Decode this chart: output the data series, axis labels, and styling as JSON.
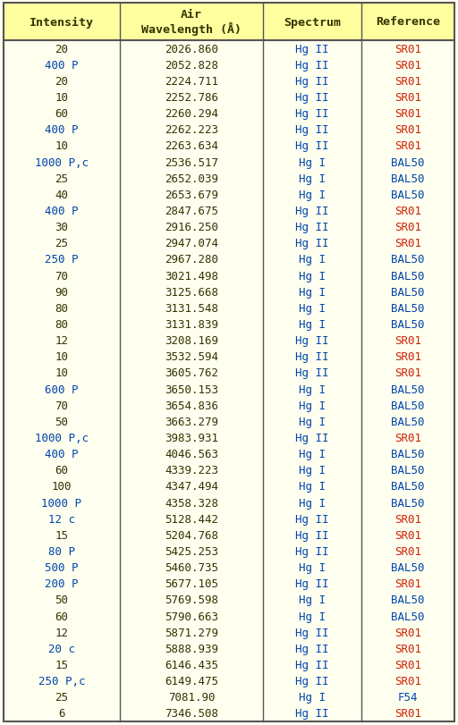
{
  "title_bg": "#ffffa0",
  "row_bg": "#fffff0",
  "border_color": "#555555",
  "header_text_color": "#333300",
  "intensity_color_default": "#333300",
  "intensity_color_highlight": "#0044aa",
  "spectrum_color": "#0044aa",
  "reference_color_sr01": "#cc2200",
  "reference_color_bal50": "#0044aa",
  "reference_color_f54": "#0044aa",
  "rows": [
    {
      "intensity": "20",
      "wavelength": "2026.860",
      "spectrum": "Hg II",
      "reference": "SR01",
      "int_hi": false
    },
    {
      "intensity": "400 P",
      "wavelength": "2052.828",
      "spectrum": "Hg II",
      "reference": "SR01",
      "int_hi": true
    },
    {
      "intensity": "20",
      "wavelength": "2224.711",
      "spectrum": "Hg II",
      "reference": "SR01",
      "int_hi": false
    },
    {
      "intensity": "10",
      "wavelength": "2252.786",
      "spectrum": "Hg II",
      "reference": "SR01",
      "int_hi": false
    },
    {
      "intensity": "60",
      "wavelength": "2260.294",
      "spectrum": "Hg II",
      "reference": "SR01",
      "int_hi": false
    },
    {
      "intensity": "400 P",
      "wavelength": "2262.223",
      "spectrum": "Hg II",
      "reference": "SR01",
      "int_hi": true
    },
    {
      "intensity": "10",
      "wavelength": "2263.634",
      "spectrum": "Hg II",
      "reference": "SR01",
      "int_hi": false
    },
    {
      "intensity": "1000 P,c",
      "wavelength": "2536.517",
      "spectrum": "Hg I",
      "reference": "BAL50",
      "int_hi": true
    },
    {
      "intensity": "25",
      "wavelength": "2652.039",
      "spectrum": "Hg I",
      "reference": "BAL50",
      "int_hi": false
    },
    {
      "intensity": "40",
      "wavelength": "2653.679",
      "spectrum": "Hg I",
      "reference": "BAL50",
      "int_hi": false
    },
    {
      "intensity": "400 P",
      "wavelength": "2847.675",
      "spectrum": "Hg II",
      "reference": "SR01",
      "int_hi": true
    },
    {
      "intensity": "30",
      "wavelength": "2916.250",
      "spectrum": "Hg II",
      "reference": "SR01",
      "int_hi": false
    },
    {
      "intensity": "25",
      "wavelength": "2947.074",
      "spectrum": "Hg II",
      "reference": "SR01",
      "int_hi": false
    },
    {
      "intensity": "250 P",
      "wavelength": "2967.280",
      "spectrum": "Hg I",
      "reference": "BAL50",
      "int_hi": true
    },
    {
      "intensity": "70",
      "wavelength": "3021.498",
      "spectrum": "Hg I",
      "reference": "BAL50",
      "int_hi": false
    },
    {
      "intensity": "90",
      "wavelength": "3125.668",
      "spectrum": "Hg I",
      "reference": "BAL50",
      "int_hi": false
    },
    {
      "intensity": "80",
      "wavelength": "3131.548",
      "spectrum": "Hg I",
      "reference": "BAL50",
      "int_hi": false
    },
    {
      "intensity": "80",
      "wavelength": "3131.839",
      "spectrum": "Hg I",
      "reference": "BAL50",
      "int_hi": false
    },
    {
      "intensity": "12",
      "wavelength": "3208.169",
      "spectrum": "Hg II",
      "reference": "SR01",
      "int_hi": false
    },
    {
      "intensity": "10",
      "wavelength": "3532.594",
      "spectrum": "Hg II",
      "reference": "SR01",
      "int_hi": false
    },
    {
      "intensity": "10",
      "wavelength": "3605.762",
      "spectrum": "Hg II",
      "reference": "SR01",
      "int_hi": false
    },
    {
      "intensity": "600 P",
      "wavelength": "3650.153",
      "spectrum": "Hg I",
      "reference": "BAL50",
      "int_hi": true
    },
    {
      "intensity": "70",
      "wavelength": "3654.836",
      "spectrum": "Hg I",
      "reference": "BAL50",
      "int_hi": false
    },
    {
      "intensity": "50",
      "wavelength": "3663.279",
      "spectrum": "Hg I",
      "reference": "BAL50",
      "int_hi": false
    },
    {
      "intensity": "1000 P,c",
      "wavelength": "3983.931",
      "spectrum": "Hg II",
      "reference": "SR01",
      "int_hi": true
    },
    {
      "intensity": "400 P",
      "wavelength": "4046.563",
      "spectrum": "Hg I",
      "reference": "BAL50",
      "int_hi": true
    },
    {
      "intensity": "60",
      "wavelength": "4339.223",
      "spectrum": "Hg I",
      "reference": "BAL50",
      "int_hi": false
    },
    {
      "intensity": "100",
      "wavelength": "4347.494",
      "spectrum": "Hg I",
      "reference": "BAL50",
      "int_hi": false
    },
    {
      "intensity": "1000 P",
      "wavelength": "4358.328",
      "spectrum": "Hg I",
      "reference": "BAL50",
      "int_hi": true
    },
    {
      "intensity": "12 c",
      "wavelength": "5128.442",
      "spectrum": "Hg II",
      "reference": "SR01",
      "int_hi": true
    },
    {
      "intensity": "15",
      "wavelength": "5204.768",
      "spectrum": "Hg II",
      "reference": "SR01",
      "int_hi": false
    },
    {
      "intensity": "80 P",
      "wavelength": "5425.253",
      "spectrum": "Hg II",
      "reference": "SR01",
      "int_hi": true
    },
    {
      "intensity": "500 P",
      "wavelength": "5460.735",
      "spectrum": "Hg I",
      "reference": "BAL50",
      "int_hi": true
    },
    {
      "intensity": "200 P",
      "wavelength": "5677.105",
      "spectrum": "Hg II",
      "reference": "SR01",
      "int_hi": true
    },
    {
      "intensity": "50",
      "wavelength": "5769.598",
      "spectrum": "Hg I",
      "reference": "BAL50",
      "int_hi": false
    },
    {
      "intensity": "60",
      "wavelength": "5790.663",
      "spectrum": "Hg I",
      "reference": "BAL50",
      "int_hi": false
    },
    {
      "intensity": "12",
      "wavelength": "5871.279",
      "spectrum": "Hg II",
      "reference": "SR01",
      "int_hi": false
    },
    {
      "intensity": "20 c",
      "wavelength": "5888.939",
      "spectrum": "Hg II",
      "reference": "SR01",
      "int_hi": true
    },
    {
      "intensity": "15",
      "wavelength": "6146.435",
      "spectrum": "Hg II",
      "reference": "SR01",
      "int_hi": false
    },
    {
      "intensity": "250 P,c",
      "wavelength": "6149.475",
      "spectrum": "Hg II",
      "reference": "SR01",
      "int_hi": true
    },
    {
      "intensity": "25",
      "wavelength": "7081.90",
      "spectrum": "Hg I",
      "reference": "F54",
      "int_hi": false
    },
    {
      "intensity": "6",
      "wavelength": "7346.508",
      "spectrum": "Hg II",
      "reference": "SR01",
      "int_hi": false
    }
  ]
}
